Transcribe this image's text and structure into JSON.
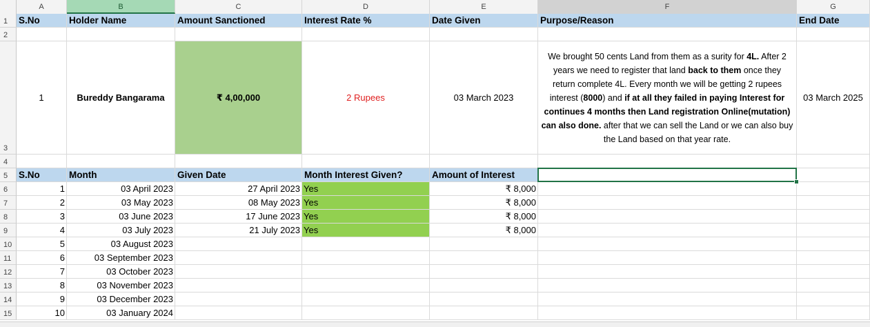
{
  "columns": [
    "A",
    "B",
    "C",
    "D",
    "E",
    "F",
    "G"
  ],
  "rows": [
    "1",
    "2",
    "3",
    "4",
    "5",
    "6",
    "7",
    "8",
    "9",
    "10",
    "11",
    "12",
    "13",
    "14",
    "15"
  ],
  "header_row": {
    "sno": "S.No",
    "holder": "Holder Name",
    "amount": "Amount Sanctioned",
    "rate": "Interest Rate %",
    "date_given": "Date Given",
    "purpose": "Purpose/Reason",
    "end_date": "End Date"
  },
  "record": {
    "sno": "1",
    "holder": "Bureddy Bangarama",
    "amount": "₹ 4,00,000",
    "rate": "2 Rupees",
    "date_given": "03 March 2023",
    "end_date": "03 March 2025",
    "purpose": {
      "p1": "We brought 50 cents Land from them as a surity for ",
      "b1": "4L.",
      "p2": " After 2 years we need to register that land ",
      "b2": "back to them",
      "p3": " once they return complete 4L. Every month we will be getting 2 rupees interest (",
      "b3": "8000",
      "p4": ") and ",
      "b4": "if at all they failed in paying Interest for continues 4 months then Land registration Online(mutation) can also done.",
      "p5": " after that we can sell the Land or we can also buy the Land based on that year rate."
    }
  },
  "sub_header": {
    "sno": "S.No",
    "month": "Month",
    "given_date": "Given Date",
    "given": "Month Interest Given?",
    "amount": "Amount of Interest"
  },
  "schedule": [
    {
      "sno": "1",
      "month": "03 April 2023",
      "given_date": "27 April 2023",
      "given": "Yes",
      "amount": "₹ 8,000"
    },
    {
      "sno": "2",
      "month": "03 May 2023",
      "given_date": "08 May 2023",
      "given": "Yes",
      "amount": "₹ 8,000"
    },
    {
      "sno": "3",
      "month": "03 June 2023",
      "given_date": "17 June 2023",
      "given": "Yes",
      "amount": "₹ 8,000"
    },
    {
      "sno": "4",
      "month": "03 July 2023",
      "given_date": "21 July 2023",
      "given": "Yes",
      "amount": "₹ 8,000"
    },
    {
      "sno": "5",
      "month": "03 August 2023",
      "given_date": "",
      "given": "",
      "amount": ""
    },
    {
      "sno": "6",
      "month": "03 September 2023",
      "given_date": "",
      "given": "",
      "amount": ""
    },
    {
      "sno": "7",
      "month": "03 October 2023",
      "given_date": "",
      "given": "",
      "amount": ""
    },
    {
      "sno": "8",
      "month": "03 November 2023",
      "given_date": "",
      "given": "",
      "amount": ""
    },
    {
      "sno": "9",
      "month": "03 December 2023",
      "given_date": "",
      "given": "",
      "amount": ""
    },
    {
      "sno": "10",
      "month": "03 January 2024",
      "given_date": "",
      "given": "",
      "amount": ""
    }
  ]
}
